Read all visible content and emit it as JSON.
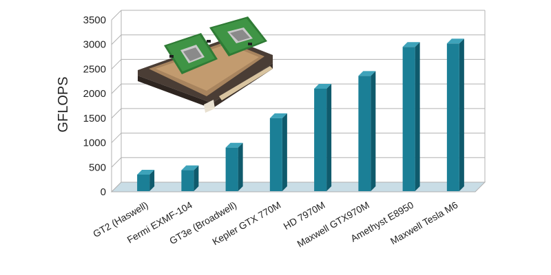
{
  "chart_data": {
    "type": "bar",
    "title": "",
    "xlabel": "",
    "ylabel": "GFLOPS",
    "ylim": [
      0,
      3500
    ],
    "yticks": [
      0,
      500,
      1000,
      1500,
      2000,
      2500,
      3000,
      3500
    ],
    "grid": true,
    "style": "3d-column",
    "categories": [
      "GT2 (Haswell)",
      "Fermi EXMF-104",
      "GT3e (Broadwell)",
      "Kepler GTX 770M",
      "HD 7970M",
      "Maxwell GTX970M",
      "Amethyst E8950",
      "Maxwell Tesla M6"
    ],
    "values": [
      350,
      440,
      900,
      1500,
      2100,
      2360,
      2950,
      3020
    ],
    "colors": {
      "bar_front": "#1b7f96",
      "bar_side": "#0f5a6c",
      "bar_top": "#3ea3ba",
      "floor": "#c9dde6",
      "grid": "#b0b0b0"
    }
  },
  "image": {
    "icon": "gpu-module-boards-photo"
  }
}
